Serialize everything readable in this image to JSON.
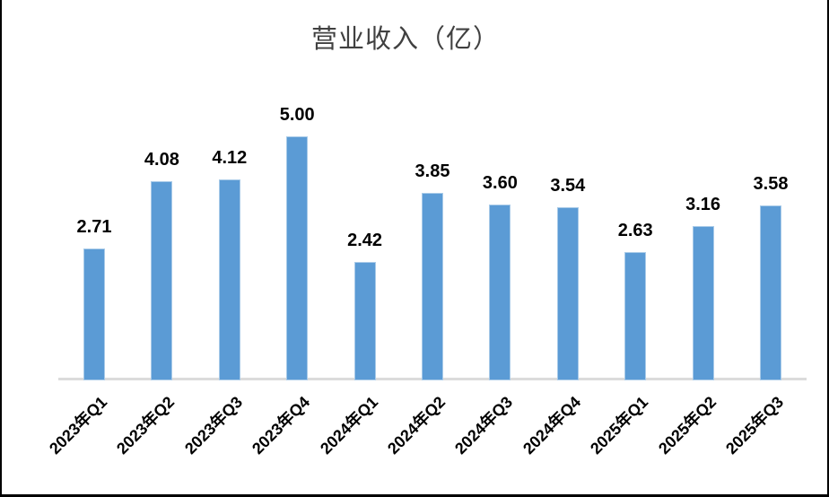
{
  "chart_data": {
    "type": "bar",
    "title": "营业收入（亿）",
    "categories": [
      "2023年Q1",
      "2023年Q2",
      "2023年Q3",
      "2023年Q4",
      "2024年Q1",
      "2024年Q2",
      "2024年Q3",
      "2024年Q4",
      "2025年Q1",
      "2025年Q2",
      "2025年Q3"
    ],
    "values": [
      2.71,
      4.08,
      4.12,
      5.0,
      2.42,
      3.85,
      3.6,
      3.54,
      2.63,
      3.16,
      3.58
    ],
    "value_labels": [
      "2.71",
      "4.08",
      "4.12",
      "5.00",
      "2.42",
      "3.85",
      "3.60",
      "3.54",
      "2.63",
      "3.16",
      "3.58"
    ],
    "xlabel": "",
    "ylabel": "",
    "ylim": [
      0,
      5.5
    ],
    "grid": false,
    "legend": false,
    "data_labels_shown": true,
    "x_tick_rotation_deg": 45,
    "colors": {
      "bar_fill": "#5B9BD5",
      "bar_edge": "#A8CAE8",
      "axis_line": "#DBDBDB",
      "label_text": "#000000",
      "title_text": "#404040"
    }
  }
}
